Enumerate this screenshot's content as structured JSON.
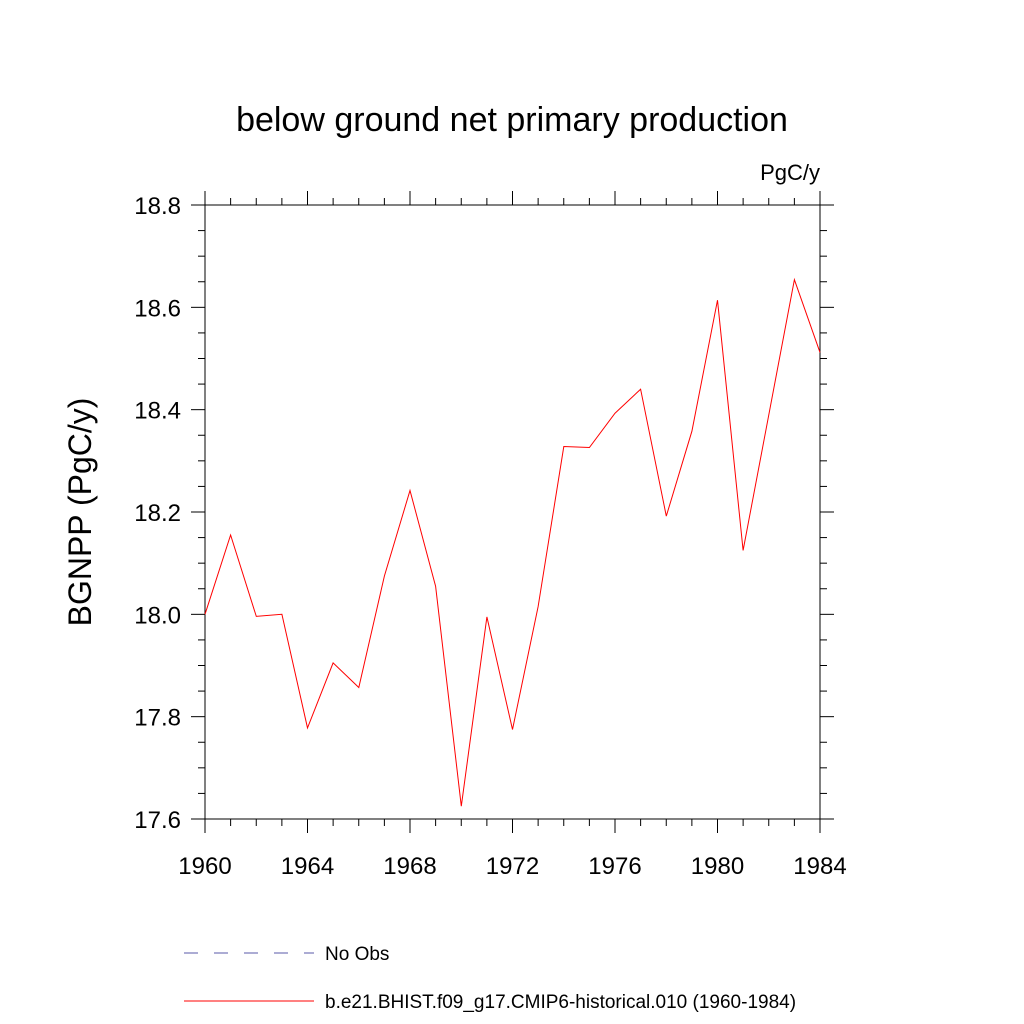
{
  "chart_data": {
    "type": "line",
    "title": "below ground net primary production",
    "units_label": "PgC/y",
    "ylabel": "BGNPP  (PgC/y)",
    "xlabel": "",
    "xlim": [
      1960,
      1984
    ],
    "ylim": [
      17.6,
      18.8
    ],
    "x_ticks": [
      1960,
      1964,
      1968,
      1972,
      1976,
      1980,
      1984
    ],
    "x_tick_labels": [
      "1960",
      "1964",
      "1968",
      "1972",
      "1976",
      "1980",
      "1984"
    ],
    "y_ticks": [
      17.6,
      17.8,
      18.0,
      18.2,
      18.4,
      18.6,
      18.8
    ],
    "y_tick_labels": [
      "17.6",
      "17.8",
      "18.0",
      "18.2",
      "18.4",
      "18.6",
      "18.8"
    ],
    "grid": false,
    "legend_position": "bottom",
    "x": [
      1960,
      1961,
      1962,
      1963,
      1964,
      1965,
      1966,
      1967,
      1968,
      1969,
      1970,
      1971,
      1972,
      1973,
      1974,
      1975,
      1976,
      1977,
      1978,
      1979,
      1980,
      1981,
      1982,
      1983,
      1984
    ],
    "series": [
      {
        "name": "b.e21.BHIST.f09_g17.CMIP6-historical.010 (1960-1984)",
        "color": "#ff0000",
        "dash": "solid",
        "values": [
          18.0,
          18.155,
          17.996,
          18.0,
          17.778,
          17.905,
          17.857,
          18.075,
          18.242,
          18.055,
          17.625,
          17.995,
          17.775,
          18.015,
          18.328,
          18.326,
          18.393,
          18.44,
          18.192,
          18.358,
          18.614,
          18.125,
          18.39,
          18.654,
          18.512
        ]
      }
    ],
    "legend": [
      {
        "label": "No Obs",
        "color": "#5a5aa8",
        "dash": "dashed"
      },
      {
        "label": "b.e21.BHIST.f09_g17.CMIP6-historical.010 (1960-1984)",
        "color": "#ff0000",
        "dash": "solid"
      }
    ]
  }
}
